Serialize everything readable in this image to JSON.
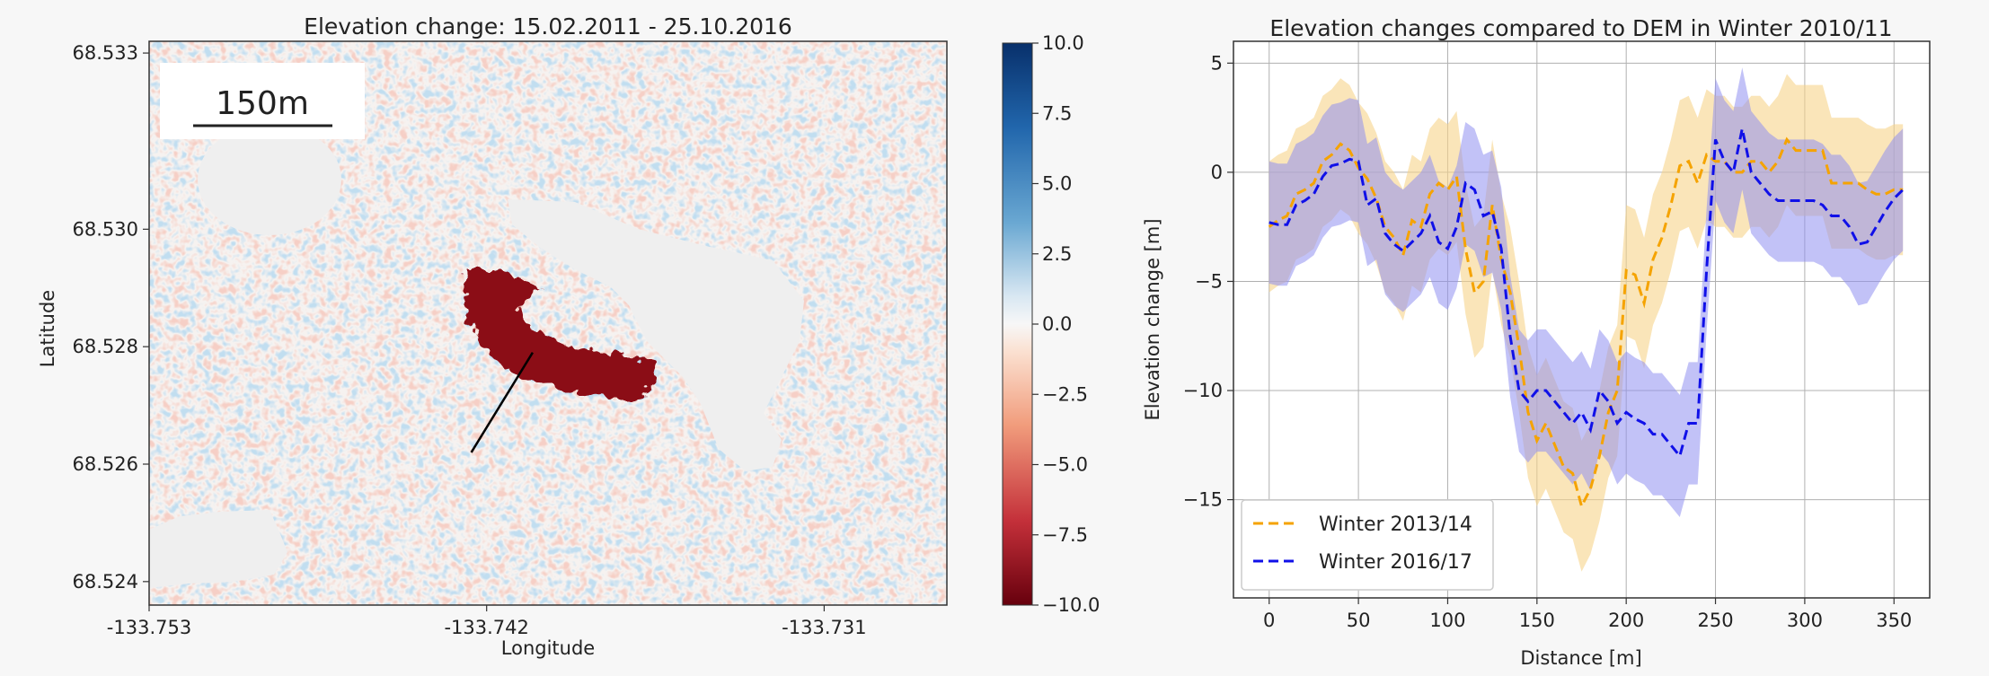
{
  "colors": {
    "map_positive": "#1f5b9a",
    "map_negative": "#8b0a14",
    "winter_2013_14": "#f5a300",
    "winter_2013_14_band": "#f6d38a",
    "winter_2016_17": "#1010e8",
    "winter_2016_17_band": "#8f8ff0"
  },
  "chart_data": [
    {
      "type": "heatmap",
      "title": "Elevation change: 15.02.2011 - 25.10.2016",
      "xlabel": "Longitude",
      "ylabel": "Latitude",
      "xticks": [
        "-133.753",
        "-133.742",
        "-133.731"
      ],
      "yticks": [
        "68.533",
        "68.530",
        "68.528",
        "68.526",
        "68.524"
      ],
      "xlim": [
        -133.753,
        -133.727
      ],
      "ylim": [
        68.5236,
        68.5332
      ],
      "colorbar": {
        "range": [
          -10,
          10
        ],
        "cmap": "RdBu",
        "ticks": [
          "10.0",
          "7.5",
          "5.0",
          "2.5",
          "0.0",
          "−2.5",
          "−5.0",
          "−7.5",
          "−10.0"
        ]
      },
      "scalebar": "150m",
      "profile_line": {
        "from": [
          -133.7405,
          68.5279
        ],
        "to": [
          -133.7425,
          68.5262
        ]
      },
      "annotations": [
        "strong negative elevation change (about -10 m) in an arc-shaped zone centred near -133.741, 68.5273",
        "large no-data patches (lakes) shown as flat grey"
      ]
    },
    {
      "type": "line",
      "title": "Elevation changes compared to DEM in Winter 2010/11",
      "xlabel": "Distance [m]",
      "ylabel": "Elevation change [m]",
      "xlim": [
        -20,
        370
      ],
      "ylim": [
        -19.5,
        6
      ],
      "xticks": [
        "0",
        "50",
        "100",
        "150",
        "200",
        "250",
        "300",
        "350"
      ],
      "yticks": [
        "5",
        "0",
        "−5",
        "−10",
        "−15"
      ],
      "grid": true,
      "legend_position": "lower-left",
      "x": [
        0,
        5,
        10,
        15,
        20,
        25,
        30,
        35,
        40,
        45,
        50,
        55,
        60,
        65,
        70,
        75,
        80,
        85,
        90,
        95,
        100,
        105,
        110,
        115,
        120,
        125,
        130,
        135,
        140,
        145,
        150,
        155,
        160,
        165,
        170,
        175,
        180,
        185,
        190,
        195,
        200,
        205,
        210,
        215,
        220,
        225,
        230,
        235,
        240,
        245,
        250,
        255,
        260,
        265,
        270,
        275,
        280,
        285,
        290,
        295,
        300,
        305,
        310,
        315,
        320,
        325,
        330,
        335,
        340,
        345,
        350,
        355
      ],
      "series": [
        {
          "name": "Winter 2013/14",
          "values": [
            -2.5,
            -2.2,
            -2.0,
            -1.0,
            -0.8,
            -0.5,
            0.5,
            0.8,
            1.3,
            1.0,
            0.2,
            -0.3,
            -1.2,
            -2.5,
            -3.0,
            -3.8,
            -2.2,
            -2.5,
            -1.0,
            -0.5,
            -0.8,
            -0.2,
            -3.5,
            -5.5,
            -5.0,
            -1.5,
            -4.0,
            -5.5,
            -8.0,
            -11.0,
            -12.3,
            -11.5,
            -12.5,
            -13.5,
            -13.8,
            -15.3,
            -14.5,
            -13.0,
            -11.0,
            -10.0,
            -4.5,
            -4.7,
            -6.0,
            -4.0,
            -3.0,
            -1.5,
            0.3,
            0.5,
            -0.5,
            0.8,
            0.5,
            0.5,
            0.0,
            0.0,
            0.5,
            0.5,
            0.0,
            0.5,
            1.5,
            1.0,
            1.0,
            1.0,
            1.0,
            -0.5,
            -0.5,
            -0.5,
            -0.5,
            -0.8,
            -1.0,
            -1.0,
            -0.8,
            -0.8
          ],
          "band_half_width": 3.0
        },
        {
          "name": "Winter 2016/17",
          "values": [
            -2.3,
            -2.4,
            -2.4,
            -1.5,
            -1.3,
            -1.0,
            -0.2,
            0.3,
            0.4,
            0.6,
            0.5,
            -1.5,
            -1.2,
            -2.8,
            -3.3,
            -3.6,
            -3.2,
            -2.8,
            -2.0,
            -3.2,
            -3.5,
            -2.5,
            -0.5,
            -0.8,
            -2.0,
            -1.8,
            -3.5,
            -7.5,
            -10.0,
            -10.5,
            -10.0,
            -10.0,
            -10.5,
            -11.0,
            -11.5,
            -11.0,
            -11.8,
            -10.0,
            -10.5,
            -11.5,
            -11.0,
            -11.3,
            -11.5,
            -12.0,
            -12.0,
            -12.5,
            -13.0,
            -11.5,
            -11.5,
            -4.5,
            1.5,
            0.5,
            0.0,
            2.0,
            0.0,
            -0.5,
            -1.0,
            -1.3,
            -1.3,
            -1.3,
            -1.3,
            -1.3,
            -1.5,
            -2.0,
            -2.0,
            -2.5,
            -3.3,
            -3.2,
            -2.5,
            -1.8,
            -1.2,
            -0.8
          ],
          "band_half_width": 2.8
        }
      ]
    }
  ]
}
